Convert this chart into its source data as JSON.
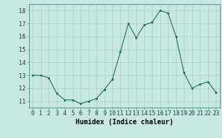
{
  "x": [
    0,
    1,
    2,
    3,
    4,
    5,
    6,
    7,
    8,
    9,
    10,
    11,
    12,
    13,
    14,
    15,
    16,
    17,
    18,
    19,
    20,
    21,
    22,
    23
  ],
  "y": [
    13.0,
    13.0,
    12.8,
    11.6,
    11.1,
    11.1,
    10.8,
    11.0,
    11.2,
    11.9,
    12.7,
    14.8,
    17.0,
    15.9,
    16.9,
    17.1,
    18.0,
    17.8,
    16.0,
    13.2,
    12.0,
    12.3,
    12.5,
    11.7
  ],
  "ylim": [
    10.5,
    18.5
  ],
  "yticks": [
    11,
    12,
    13,
    14,
    15,
    16,
    17,
    18
  ],
  "xlabel": "Humidex (Indice chaleur)",
  "line_color": "#1a6b5a",
  "marker_color": "#1a6b5a",
  "bg_color": "#c8e8e4",
  "grid_color": "#a8ccc8",
  "xlabel_fontsize": 7,
  "tick_fontsize": 6
}
